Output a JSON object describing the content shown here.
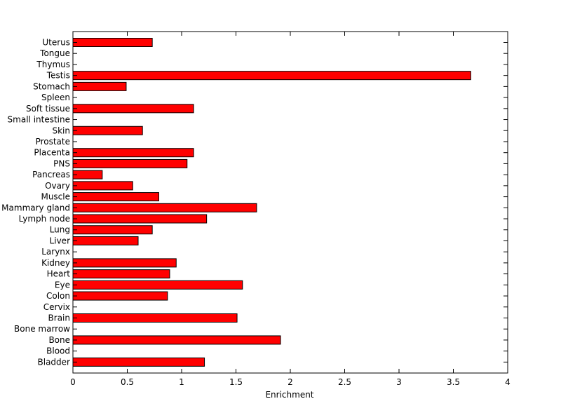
{
  "chart_data": {
    "type": "bar",
    "orientation": "horizontal",
    "title": "",
    "xlabel": "Enrichment",
    "ylabel": "",
    "xlim": [
      0,
      4
    ],
    "xticks": [
      "0",
      "0.5",
      "1",
      "1.5",
      "2",
      "2.5",
      "3",
      "3.5",
      "4"
    ],
    "grid": false,
    "bar_color": "#ff0000",
    "bar_edge_color": "#000000",
    "categories": [
      "Bladder",
      "Blood",
      "Bone",
      "Bone marrow",
      "Brain",
      "Cervix",
      "Colon",
      "Eye",
      "Heart",
      "Kidney",
      "Larynx",
      "Liver",
      "Lung",
      "Lymph node",
      "Mammary gland",
      "Muscle",
      "Ovary",
      "Pancreas",
      "PNS",
      "Placenta",
      "Prostate",
      "Skin",
      "Small intestine",
      "Soft tissue",
      "Spleen",
      "Stomach",
      "Testis",
      "Thymus",
      "Tongue",
      "Uterus"
    ],
    "values": [
      1.21,
      0,
      1.91,
      0,
      1.51,
      0,
      0.87,
      1.56,
      0.89,
      0.95,
      0,
      0.6,
      0.73,
      1.23,
      1.69,
      0.79,
      0.55,
      0.27,
      1.05,
      1.11,
      0,
      0.64,
      0,
      1.11,
      0,
      0.49,
      3.66,
      0,
      0,
      0.73
    ]
  }
}
